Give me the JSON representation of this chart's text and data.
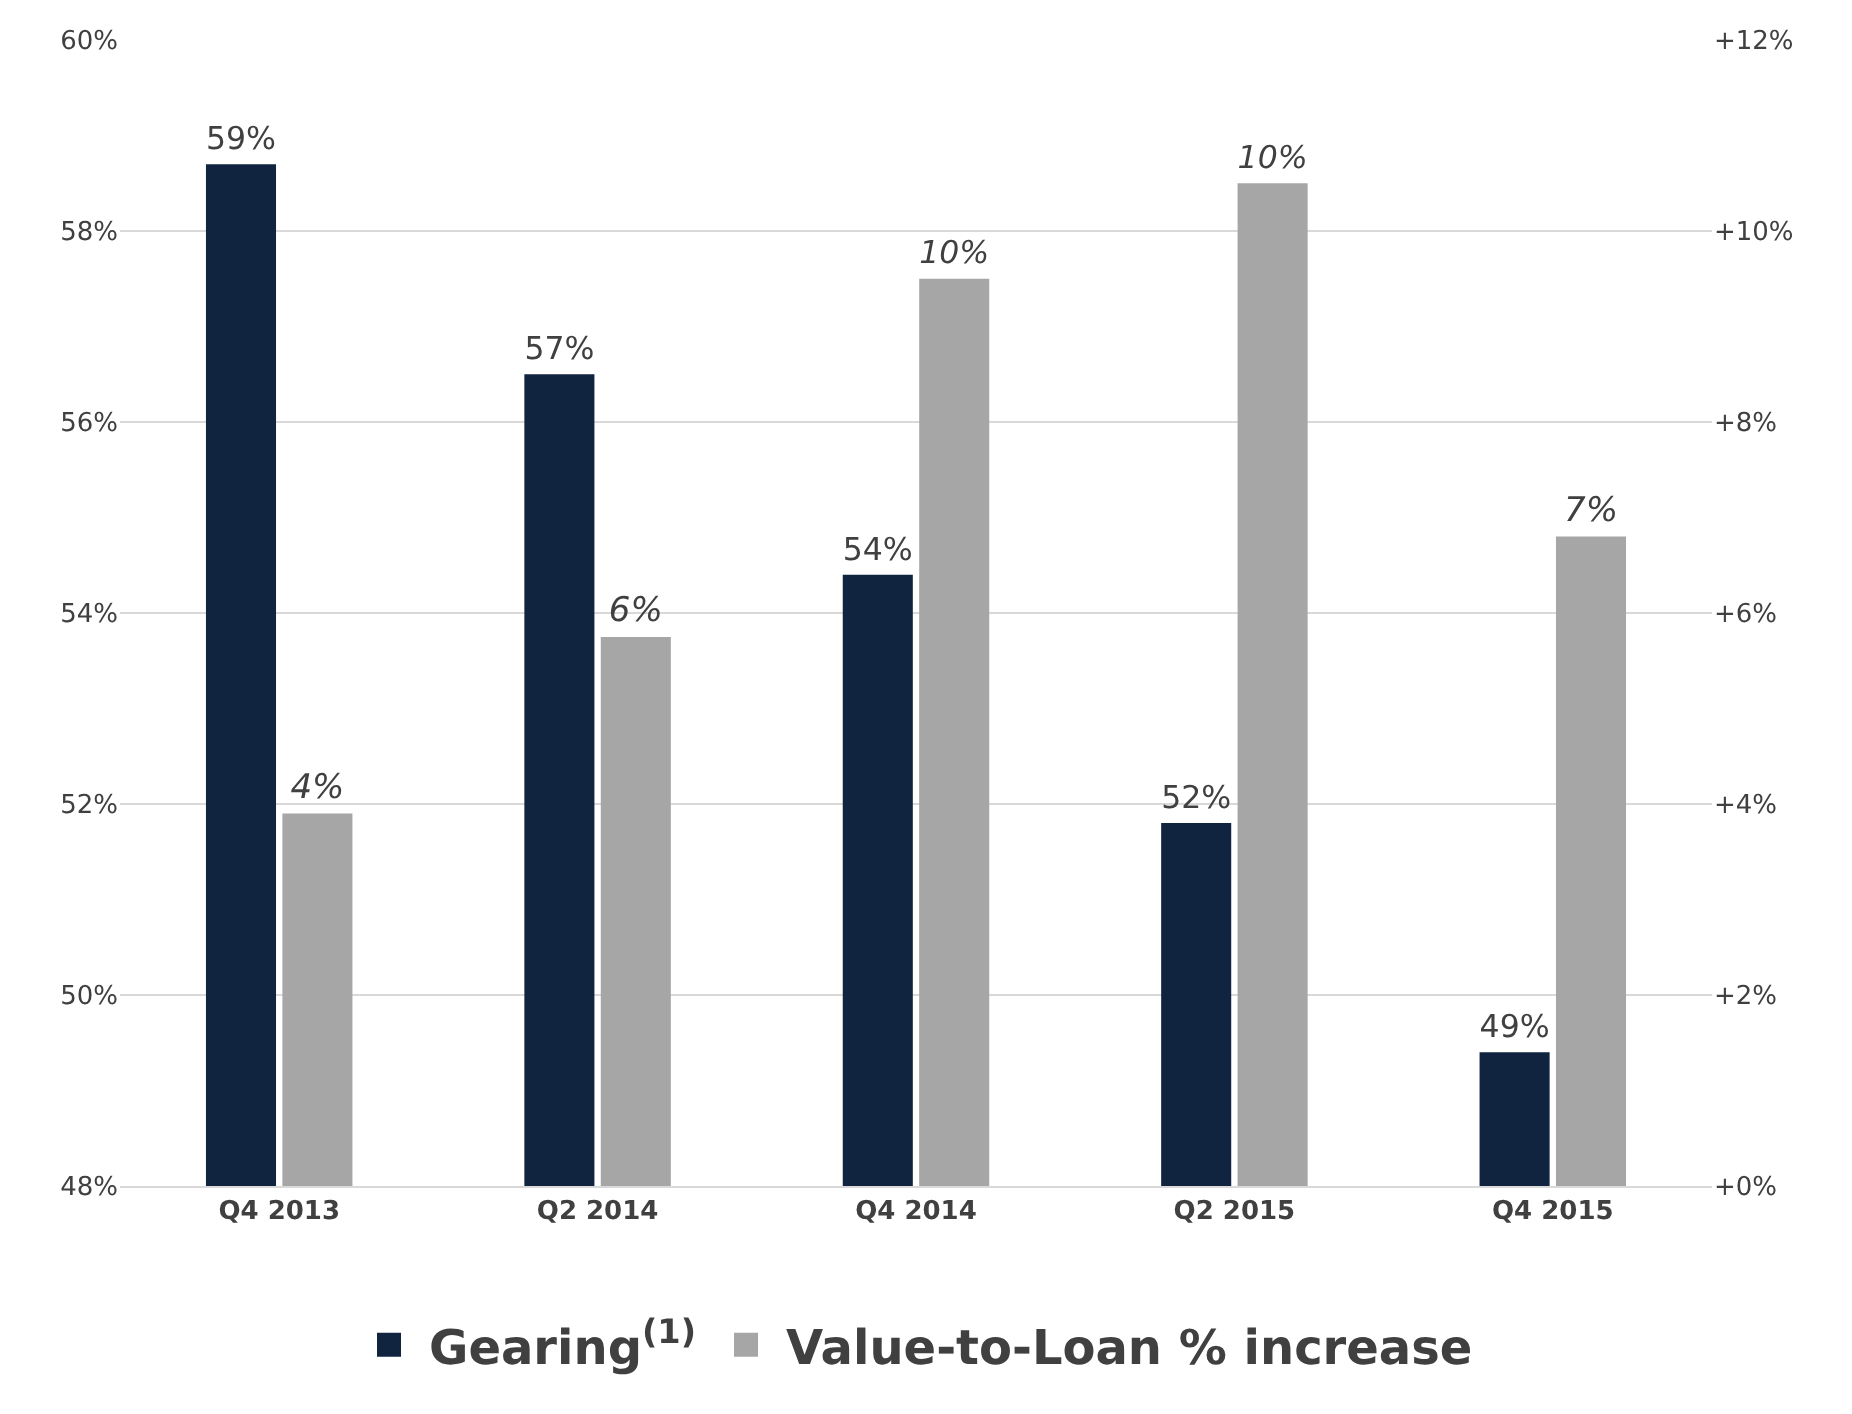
{
  "chart_data": {
    "type": "bar",
    "categories": [
      "Q4 2013",
      "Q2 2014",
      "Q4 2014",
      "Q2 2015",
      "Q4 2015"
    ],
    "series": [
      {
        "name": "Gearing$^{(1)}$",
        "color": "#10233f",
        "values": [
          58.7,
          56.5,
          54.4,
          51.8,
          49.4
        ],
        "value_labels": [
          "59%",
          "57%",
          "54%",
          "52%",
          "49%"
        ]
      },
      {
        "name": "Value-to-Loan % increase",
        "color": "#a6a6a6",
        "axis": "y2",
        "values": [
          3.9,
          5.75,
          9.5,
          10.5,
          6.8
        ],
        "value_labels": [
          "4%",
          "6%",
          "10%",
          "10%",
          "7%"
        ]
      }
    ],
    "ylim": [
      48,
      60
    ],
    "yticks": [
      {
        "value": 48,
        "label": "48%"
      },
      {
        "value": 50,
        "label": "50%"
      },
      {
        "value": 52,
        "label": "52%"
      },
      {
        "value": 54,
        "label": "54%"
      },
      {
        "value": 56,
        "label": "56%"
      },
      {
        "value": 58,
        "label": "58%"
      },
      {
        "value": 60,
        "label": "60%"
      }
    ],
    "y2lim": [
      0,
      12
    ],
    "y2ticks": [
      {
        "value": 0,
        "label": "+0%"
      },
      {
        "value": 2,
        "label": "+2%"
      },
      {
        "value": 4,
        "label": "+4%"
      },
      {
        "value": 6,
        "label": "+6%"
      },
      {
        "value": 8,
        "label": "+8%"
      },
      {
        "value": 10,
        "label": "+10%"
      },
      {
        "value": 12,
        "label": "+12%"
      }
    ],
    "grid": "y",
    "legend": "bottom"
  }
}
